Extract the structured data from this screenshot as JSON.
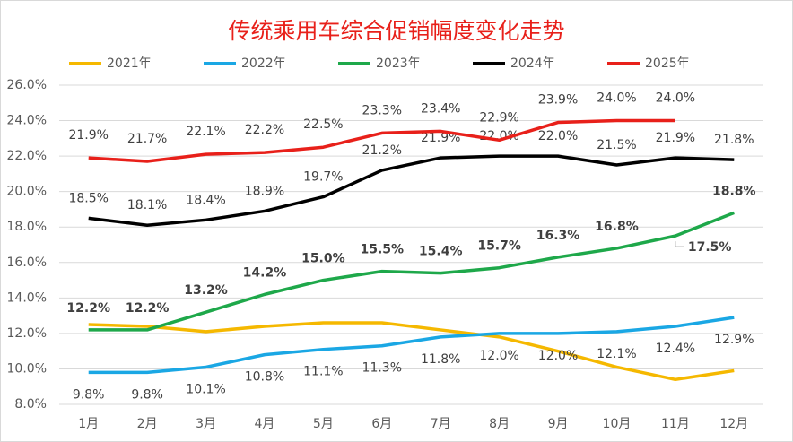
{
  "chart_data": {
    "type": "line",
    "title": "传统乘用车综合促销幅度变化走势",
    "categories": [
      "1月",
      "2月",
      "3月",
      "4月",
      "5月",
      "6月",
      "7月",
      "8月",
      "9月",
      "10月",
      "11月",
      "12月"
    ],
    "ylim": [
      8,
      26
    ],
    "yticks": [
      {
        "value": 8,
        "label": "8.0%"
      },
      {
        "value": 10,
        "label": "10.0%"
      },
      {
        "value": 12,
        "label": "12.0%"
      },
      {
        "value": 14,
        "label": "14.0%"
      },
      {
        "value": 16,
        "label": "16.0%"
      },
      {
        "value": 18,
        "label": "18.0%"
      },
      {
        "value": 20,
        "label": "20.0%"
      },
      {
        "value": 22,
        "label": "22.0%"
      },
      {
        "value": 24,
        "label": "24.0%"
      },
      {
        "value": 26,
        "label": "26.0%"
      }
    ],
    "grid": true,
    "legend": "top",
    "series": [
      {
        "name": "2021年",
        "color": "#f5b800",
        "values": [
          12.5,
          12.4,
          12.1,
          12.4,
          12.6,
          12.6,
          12.2,
          11.8,
          11.0,
          10.1,
          9.4,
          9.9
        ]
      },
      {
        "name": "2022年",
        "color": "#1aa7e4",
        "values": [
          9.8,
          9.8,
          10.1,
          10.8,
          11.1,
          11.3,
          11.8,
          12.0,
          12.0,
          12.1,
          12.4,
          12.9
        ],
        "value_labels": [
          "9.8%",
          "9.8%",
          "10.1%",
          "10.8%",
          "11.1%",
          "11.3%",
          "11.8%",
          "12.0%",
          "12.0%",
          "12.1%",
          "12.4%",
          "12.9%"
        ]
      },
      {
        "name": "2023年",
        "color": "#1ea84a",
        "values": [
          12.2,
          12.2,
          13.2,
          14.2,
          15.0,
          15.5,
          15.4,
          15.7,
          16.3,
          16.8,
          17.5,
          18.8
        ],
        "value_labels": [
          "12.2%",
          "12.2%",
          "13.2%",
          "14.2%",
          "15.0%",
          "15.5%",
          "15.4%",
          "15.7%",
          "16.3%",
          "16.8%",
          "17.5%",
          "18.8%"
        ]
      },
      {
        "name": "2024年",
        "color": "#000000",
        "values": [
          18.5,
          18.1,
          18.4,
          18.9,
          19.7,
          21.2,
          21.9,
          22.0,
          22.0,
          21.5,
          21.9,
          21.8
        ],
        "value_labels": [
          "18.5%",
          "18.1%",
          "18.4%",
          "18.9%",
          "19.7%",
          "21.2%",
          "21.9%",
          "22.0%",
          "22.0%",
          "21.5%",
          "21.9%",
          "21.8%"
        ]
      },
      {
        "name": "2025年",
        "color": "#e8201a",
        "values": [
          21.9,
          21.7,
          22.1,
          22.2,
          22.5,
          23.3,
          23.4,
          22.9,
          23.9,
          24.0,
          24.0,
          null
        ],
        "value_labels": [
          "21.9%",
          "21.7%",
          "22.1%",
          "22.2%",
          "22.5%",
          "23.3%",
          "23.4%",
          "22.9%",
          "23.9%",
          "24.0%",
          "24.0%",
          null
        ]
      }
    ]
  }
}
